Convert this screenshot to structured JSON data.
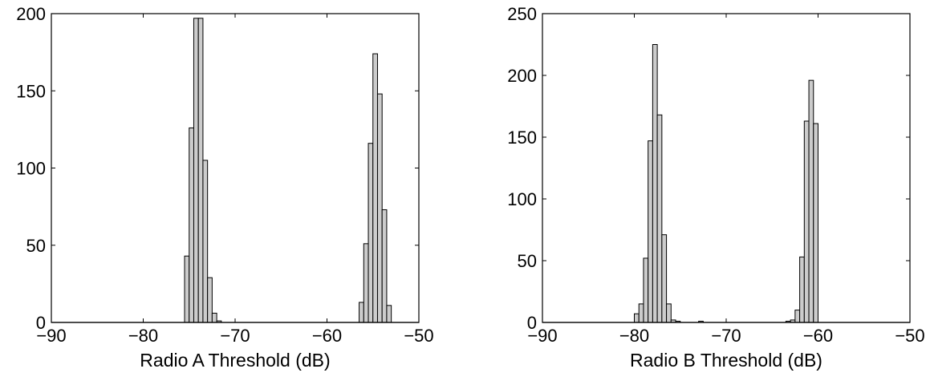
{
  "chart_data": [
    {
      "type": "bar",
      "title": "",
      "xlabel": "Radio A Threshold (dB)",
      "ylabel": "",
      "xlim": [
        -90,
        -50
      ],
      "ylim": [
        0,
        200
      ],
      "xticks": [
        "−90",
        "−80",
        "−70",
        "−60",
        "−50"
      ],
      "yticks": [
        "0",
        "50",
        "100",
        "150",
        "200"
      ],
      "grid": false,
      "bar_color": "#cccccc",
      "bin_width": 0.5,
      "bin_centers": [
        -75.25,
        -74.75,
        -74.25,
        -73.75,
        -73.25,
        -72.75,
        -72.25,
        -71.75,
        -56.25,
        -55.75,
        -55.25,
        -54.75,
        -54.25,
        -53.75,
        -53.25
      ],
      "values": [
        43,
        126,
        197,
        197,
        105,
        29,
        6,
        1,
        13,
        51,
        116,
        174,
        148,
        73,
        11
      ]
    },
    {
      "type": "bar",
      "title": "",
      "xlabel": "Radio B Threshold (dB)",
      "ylabel": "",
      "xlim": [
        -90,
        -50
      ],
      "ylim": [
        0,
        250
      ],
      "xticks": [
        "−90",
        "−80",
        "−70",
        "−60",
        "−50"
      ],
      "yticks": [
        "0",
        "50",
        "100",
        "150",
        "200",
        "250"
      ],
      "grid": false,
      "bar_color": "#cccccc",
      "bin_width": 0.5,
      "bin_centers": [
        -79.75,
        -79.25,
        -78.75,
        -78.25,
        -77.75,
        -77.25,
        -76.75,
        -76.25,
        -75.75,
        -75.25,
        -72.75,
        -63.25,
        -62.75,
        -62.25,
        -61.75,
        -61.25,
        -60.75,
        -60.25
      ],
      "values": [
        7,
        15,
        52,
        147,
        225,
        168,
        71,
        15,
        2,
        1,
        1,
        1,
        2,
        10,
        53,
        163,
        196,
        161
      ]
    }
  ]
}
